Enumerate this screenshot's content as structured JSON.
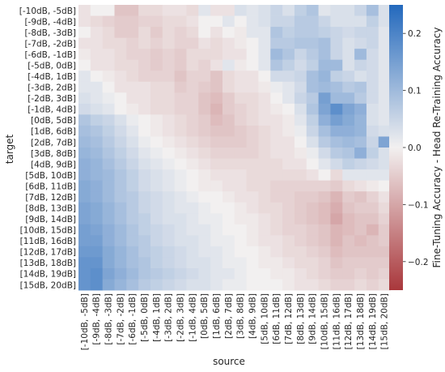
{
  "chart_data": {
    "type": "heatmap",
    "xlabel": "source",
    "ylabel": "target",
    "x_categories": [
      "[-10dB, -5dB]",
      "[-9dB, -4dB]",
      "[-8dB, -3dB]",
      "[-7dB, -2dB]",
      "[-6dB, -1dB]",
      "[-5dB, 0dB]",
      "[-4dB, 1dB]",
      "[-3dB, 2dB]",
      "[-2dB, 3dB]",
      "[-1dB, 4dB]",
      "[0dB, 5dB]",
      "[1dB, 6dB]",
      "[2dB, 7dB]",
      "[3dB, 8dB]",
      "[4dB, 9dB]",
      "[5dB, 10dB]",
      "[6dB, 11dB]",
      "[7dB, 12dB]",
      "[8dB, 13dB]",
      "[9dB, 14dB]",
      "[10dB, 15dB]",
      "[11dB, 16dB]",
      "[12dB, 17dB]",
      "[13dB, 18dB]",
      "[14dB, 19dB]",
      "[15dB, 20dB]"
    ],
    "y_categories": [
      "[-10dB, -5dB]",
      "[-9dB, -4dB]",
      "[-8dB, -3dB]",
      "[-7dB, -2dB]",
      "[-6dB, -1dB]",
      "[-5dB, 0dB]",
      "[-4dB, 1dB]",
      "[-3dB, 2dB]",
      "[-2dB, 3dB]",
      "[-1dB, 4dB]",
      "[0dB, 5dB]",
      "[1dB, 6dB]",
      "[2dB, 7dB]",
      "[3dB, 8dB]",
      "[4dB, 9dB]",
      "[5dB, 10dB]",
      "[6dB, 11dB]",
      "[7dB, 12dB]",
      "[8dB, 13dB]",
      "[9dB, 14dB]",
      "[10dB, 15dB]",
      "[11dB, 16dB]",
      "[12dB, 17dB]",
      "[13dB, 18dB]",
      "[14dB, 19dB]",
      "[15dB, 20dB]"
    ],
    "values": [
      [
        -0.02,
        0.0,
        0.0,
        -0.06,
        -0.06,
        -0.03,
        -0.03,
        -0.02,
        -0.02,
        -0.03,
        0.02,
        -0.02,
        -0.02,
        0.03,
        0.02,
        0.03,
        0.05,
        0.03,
        0.06,
        0.08,
        0.02,
        0.03,
        0.03,
        0.05,
        0.09,
        0.03
      ],
      [
        -0.02,
        -0.03,
        -0.04,
        -0.05,
        -0.05,
        -0.04,
        -0.04,
        -0.03,
        -0.03,
        -0.02,
        0.0,
        0.0,
        0.02,
        0.0,
        0.02,
        0.03,
        0.05,
        0.05,
        0.07,
        0.07,
        0.05,
        0.03,
        0.03,
        0.03,
        0.06,
        0.03
      ],
      [
        0.0,
        -0.02,
        -0.03,
        -0.05,
        -0.05,
        -0.03,
        -0.05,
        -0.03,
        -0.04,
        -0.03,
        0.0,
        -0.02,
        0.0,
        -0.01,
        0.02,
        0.02,
        0.08,
        0.06,
        0.07,
        0.07,
        0.06,
        0.05,
        0.04,
        0.05,
        0.05,
        0.02
      ],
      [
        -0.02,
        -0.02,
        -0.03,
        -0.03,
        -0.04,
        -0.03,
        -0.04,
        -0.03,
        -0.04,
        -0.04,
        -0.02,
        -0.03,
        -0.02,
        -0.01,
        0.0,
        0.02,
        0.07,
        0.07,
        0.08,
        0.08,
        0.09,
        0.05,
        0.03,
        0.04,
        0.05,
        0.02
      ],
      [
        -0.01,
        -0.02,
        -0.02,
        -0.03,
        -0.04,
        -0.04,
        -0.05,
        -0.04,
        -0.05,
        -0.03,
        -0.03,
        -0.03,
        -0.02,
        -0.02,
        0.0,
        0.02,
        0.1,
        0.08,
        0.05,
        0.07,
        0.09,
        0.05,
        0.03,
        0.1,
        0.04,
        0.02
      ],
      [
        0.0,
        -0.02,
        -0.02,
        -0.03,
        -0.03,
        -0.04,
        -0.05,
        -0.04,
        -0.05,
        -0.03,
        -0.04,
        -0.02,
        0.02,
        -0.01,
        0.0,
        0.02,
        0.08,
        0.06,
        0.04,
        0.06,
        0.1,
        0.1,
        0.03,
        0.05,
        0.04,
        0.02
      ],
      [
        0.02,
        0.0,
        -0.01,
        -0.02,
        -0.03,
        -0.04,
        -0.04,
        -0.04,
        -0.06,
        -0.04,
        -0.04,
        -0.06,
        -0.03,
        -0.02,
        -0.02,
        0.0,
        0.04,
        0.04,
        0.05,
        0.09,
        0.11,
        0.06,
        0.05,
        0.03,
        0.04,
        0.02
      ],
      [
        0.02,
        0.02,
        0.0,
        -0.02,
        -0.02,
        -0.02,
        -0.03,
        -0.03,
        -0.05,
        -0.04,
        -0.05,
        -0.06,
        -0.03,
        -0.02,
        -0.02,
        -0.01,
        0.01,
        0.02,
        0.04,
        0.09,
        0.1,
        0.09,
        0.07,
        0.08,
        0.04,
        0.02
      ],
      [
        0.03,
        0.02,
        0.01,
        0.0,
        -0.02,
        -0.02,
        -0.03,
        -0.03,
        -0.04,
        -0.04,
        -0.06,
        -0.07,
        -0.05,
        -0.03,
        -0.03,
        -0.02,
        0.0,
        0.02,
        0.05,
        0.07,
        0.15,
        0.1,
        0.1,
        0.07,
        0.04,
        0.02
      ],
      [
        0.04,
        0.03,
        0.02,
        0.0,
        -0.01,
        -0.02,
        -0.03,
        -0.03,
        -0.04,
        -0.04,
        -0.06,
        -0.08,
        -0.05,
        -0.04,
        -0.03,
        -0.02,
        -0.01,
        0.0,
        0.03,
        0.08,
        0.14,
        0.18,
        0.14,
        0.12,
        0.03,
        0.02
      ],
      [
        0.08,
        0.06,
        0.05,
        0.03,
        0.01,
        0.0,
        -0.01,
        -0.02,
        -0.03,
        -0.04,
        -0.05,
        -0.07,
        -0.06,
        -0.04,
        -0.03,
        -0.02,
        -0.02,
        -0.01,
        0.02,
        0.06,
        0.12,
        0.15,
        0.13,
        0.11,
        0.03,
        0.02
      ],
      [
        0.09,
        0.08,
        0.06,
        0.04,
        0.02,
        0.0,
        -0.01,
        -0.02,
        -0.03,
        -0.04,
        -0.05,
        -0.06,
        -0.06,
        -0.05,
        -0.04,
        -0.03,
        -0.02,
        -0.01,
        0.01,
        0.05,
        0.09,
        0.12,
        0.12,
        0.11,
        0.04,
        0.03
      ],
      [
        0.1,
        0.09,
        0.07,
        0.05,
        0.03,
        0.01,
        0.0,
        -0.01,
        -0.02,
        -0.03,
        -0.04,
        -0.05,
        -0.05,
        -0.05,
        -0.04,
        -0.03,
        -0.02,
        -0.02,
        0.0,
        0.03,
        0.07,
        0.09,
        0.1,
        0.09,
        0.05,
        0.14
      ],
      [
        0.11,
        0.1,
        0.08,
        0.06,
        0.04,
        0.02,
        0.01,
        0.0,
        -0.01,
        -0.02,
        -0.03,
        -0.04,
        -0.04,
        -0.04,
        -0.04,
        -0.03,
        -0.02,
        -0.02,
        -0.01,
        0.01,
        0.04,
        0.07,
        0.08,
        0.12,
        0.06,
        0.03
      ],
      [
        0.12,
        0.11,
        0.09,
        0.07,
        0.05,
        0.03,
        0.02,
        0.01,
        0.0,
        -0.01,
        -0.02,
        -0.03,
        -0.03,
        -0.03,
        -0.03,
        -0.03,
        -0.03,
        -0.02,
        -0.02,
        0.0,
        0.02,
        0.04,
        0.06,
        0.05,
        0.04,
        0.03
      ],
      [
        0.12,
        0.11,
        0.1,
        0.08,
        0.06,
        0.04,
        0.03,
        0.02,
        0.01,
        0.0,
        -0.01,
        -0.02,
        -0.02,
        -0.02,
        -0.03,
        -0.03,
        -0.03,
        -0.03,
        -0.03,
        -0.02,
        0.0,
        -0.03,
        0.02,
        0.02,
        0.02,
        0.02
      ],
      [
        0.13,
        0.12,
        0.1,
        0.08,
        0.06,
        0.04,
        0.03,
        0.02,
        0.01,
        0.0,
        -0.01,
        -0.01,
        -0.02,
        -0.02,
        -0.03,
        -0.03,
        -0.04,
        -0.04,
        -0.04,
        -0.04,
        -0.04,
        -0.05,
        -0.03,
        -0.02,
        -0.01,
        0.0
      ],
      [
        0.13,
        0.12,
        0.1,
        0.08,
        0.07,
        0.05,
        0.04,
        0.03,
        0.02,
        0.01,
        0.0,
        0.0,
        -0.01,
        -0.02,
        -0.02,
        -0.03,
        -0.04,
        -0.04,
        -0.05,
        -0.05,
        -0.06,
        -0.08,
        -0.05,
        -0.06,
        -0.04,
        -0.02
      ],
      [
        0.14,
        0.13,
        0.11,
        0.09,
        0.07,
        0.05,
        0.04,
        0.03,
        0.02,
        0.02,
        0.01,
        0.0,
        0.0,
        -0.01,
        -0.02,
        -0.03,
        -0.03,
        -0.04,
        -0.05,
        -0.06,
        -0.07,
        -0.09,
        -0.06,
        -0.05,
        -0.05,
        -0.03
      ],
      [
        0.14,
        0.13,
        0.11,
        0.09,
        0.07,
        0.06,
        0.04,
        0.03,
        0.03,
        0.02,
        0.01,
        0.01,
        0.0,
        -0.01,
        -0.01,
        -0.02,
        -0.03,
        -0.04,
        -0.05,
        -0.06,
        -0.07,
        -0.1,
        -0.07,
        -0.06,
        -0.06,
        -0.04
      ],
      [
        0.15,
        0.14,
        0.12,
        0.1,
        0.08,
        0.06,
        0.05,
        0.04,
        0.03,
        0.02,
        0.02,
        0.01,
        0.0,
        0.0,
        -0.01,
        -0.02,
        -0.03,
        -0.04,
        -0.04,
        -0.05,
        -0.06,
        -0.08,
        -0.07,
        -0.06,
        -0.08,
        -0.05
      ],
      [
        0.15,
        0.15,
        0.12,
        0.1,
        0.08,
        0.07,
        0.05,
        0.04,
        0.03,
        0.03,
        0.02,
        0.01,
        0.01,
        0.0,
        -0.01,
        -0.02,
        -0.02,
        -0.03,
        -0.04,
        -0.05,
        -0.06,
        -0.08,
        -0.06,
        -0.07,
        -0.06,
        -0.05
      ],
      [
        0.16,
        0.16,
        0.13,
        0.11,
        0.09,
        0.07,
        0.06,
        0.05,
        0.04,
        0.03,
        0.02,
        0.02,
        0.01,
        0.0,
        0.0,
        -0.01,
        -0.02,
        -0.03,
        -0.03,
        -0.04,
        -0.05,
        -0.07,
        -0.06,
        -0.06,
        -0.06,
        -0.06
      ],
      [
        0.17,
        0.17,
        0.13,
        0.11,
        0.09,
        0.08,
        0.06,
        0.05,
        0.04,
        0.03,
        0.03,
        0.02,
        0.01,
        0.01,
        0.0,
        -0.01,
        -0.01,
        -0.02,
        -0.03,
        -0.03,
        -0.04,
        -0.06,
        -0.05,
        -0.05,
        -0.05,
        -0.05
      ],
      [
        0.17,
        0.18,
        0.14,
        0.12,
        0.1,
        0.08,
        0.07,
        0.06,
        0.05,
        0.04,
        0.03,
        0.02,
        0.02,
        0.01,
        0.0,
        0.0,
        -0.01,
        -0.01,
        -0.02,
        -0.03,
        -0.04,
        -0.05,
        -0.05,
        -0.04,
        -0.05,
        -0.04
      ],
      [
        0.17,
        0.18,
        0.13,
        0.11,
        0.09,
        0.07,
        0.06,
        0.05,
        0.04,
        0.03,
        0.03,
        0.02,
        0.01,
        0.01,
        0.0,
        0.0,
        0.0,
        -0.01,
        -0.02,
        -0.02,
        -0.03,
        -0.04,
        -0.04,
        -0.03,
        -0.04,
        -0.03
      ]
    ],
    "colorbar": {
      "label": "Fine-Tuning Accuracy - Head Re-Training Accuracy",
      "range": [
        -0.25,
        0.25
      ],
      "ticks": [
        -0.2,
        -0.1,
        0.0,
        0.1,
        0.2
      ],
      "tick_labels": [
        "−0.2",
        "−0.1",
        "0.0",
        "0.1",
        "0.2"
      ],
      "colormap": "vlag",
      "low_color": "#a9373b",
      "mid_color": "#f2f0f0",
      "high_color": "#2369bd"
    }
  }
}
